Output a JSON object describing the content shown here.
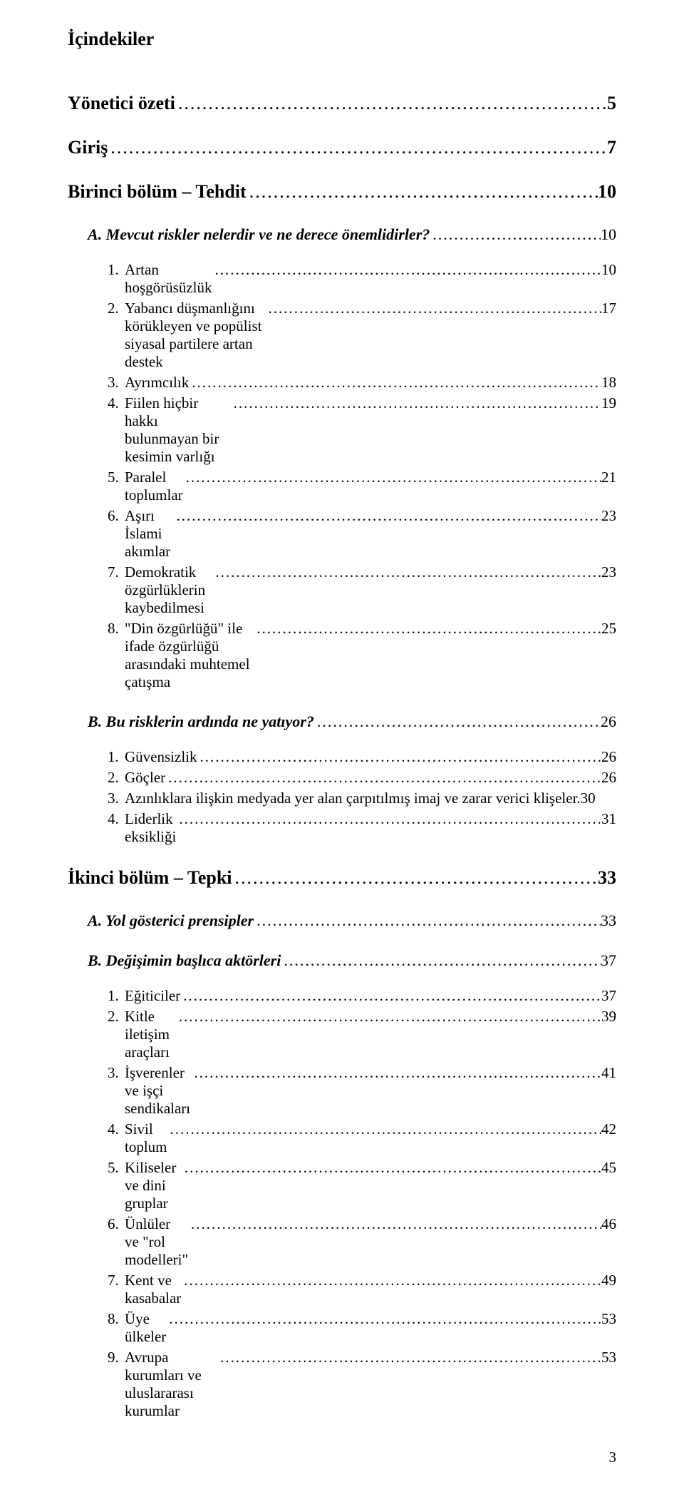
{
  "title": "İçindekiler",
  "sections": [
    {
      "type": "h1",
      "label": "Yönetici özeti",
      "page": "5"
    },
    {
      "type": "h1",
      "label": "Giriş",
      "page": "7"
    },
    {
      "type": "h1",
      "label": "Birinci bölüm – Tehdit",
      "page": "10"
    },
    {
      "type": "h2",
      "label": "A. Mevcut riskler nelerdir ve ne derece önemlidirler?",
      "page": "10"
    },
    {
      "type": "h3",
      "num": "1.",
      "label": "Artan hoşgörüsüzlük",
      "page": "10"
    },
    {
      "type": "h3",
      "num": "2.",
      "label": "Yabancı düşmanlığını körükleyen ve popülist siyasal partilere artan destek",
      "page": "17"
    },
    {
      "type": "h3",
      "num": "3.",
      "label": "Ayrımcılık",
      "page": "18"
    },
    {
      "type": "h3",
      "num": "4.",
      "label": "Fiilen hiçbir hakkı bulunmayan bir kesimin varlığı",
      "page": "19"
    },
    {
      "type": "h3",
      "num": "5.",
      "label": "Paralel toplumlar",
      "page": "21"
    },
    {
      "type": "h3",
      "num": "6.",
      "label": "Aşırı İslami akımlar",
      "page": "23"
    },
    {
      "type": "h3",
      "num": "7.",
      "label": "Demokratik özgürlüklerin kaybedilmesi",
      "page": "23"
    },
    {
      "type": "h3",
      "num": "8.",
      "label": "\"Din özgürlüğü\" ile ifade özgürlüğü arasındaki muhtemel çatışma",
      "page": "25"
    },
    {
      "type": "h2",
      "label": "B. Bu risklerin ardında ne yatıyor?",
      "page": "26"
    },
    {
      "type": "h3",
      "num": "1.",
      "label": "Güvensizlik",
      "page": "26"
    },
    {
      "type": "h3",
      "num": "2.",
      "label": "Göçler",
      "page": "26"
    },
    {
      "type": "h3",
      "num": "3.",
      "label": "Azınlıklara ilişkin medyada yer alan çarpıtılmış imaj ve zarar verici klişeler.",
      "page": "30",
      "no_leader": true
    },
    {
      "type": "h3",
      "num": "4.",
      "label": "Liderlik eksikliği",
      "page": "31"
    },
    {
      "type": "h1",
      "label": "İkinci bölüm – Tepki",
      "page": "33"
    },
    {
      "type": "h2",
      "label": "A. Yol gösterici prensipler",
      "page": "33"
    },
    {
      "type": "h2",
      "label": "B. Değişimin başlıca aktörleri",
      "page": "37"
    },
    {
      "type": "h3",
      "num": "1.",
      "label": "Eğiticiler",
      "page": "37"
    },
    {
      "type": "h3",
      "num": "2.",
      "label": "Kitle iletişim araçları",
      "page": "39"
    },
    {
      "type": "h3",
      "num": "3.",
      "label": "İşverenler ve işçi sendikaları",
      "page": "41"
    },
    {
      "type": "h3",
      "num": "4.",
      "label": "Sivil toplum",
      "page": "42"
    },
    {
      "type": "h3",
      "num": "5.",
      "label": "Kiliseler ve dini gruplar",
      "page": "45"
    },
    {
      "type": "h3",
      "num": "6.",
      "label": "Ünlüler ve \"rol modelleri\"",
      "page": "46"
    },
    {
      "type": "h3",
      "num": "7.",
      "label": "Kent ve kasabalar",
      "page": "49"
    },
    {
      "type": "h3",
      "num": "8.",
      "label": "Üye ülkeler",
      "page": "53"
    },
    {
      "type": "h3",
      "num": "9.",
      "label": "Avrupa kurumları ve uluslararası kurumlar",
      "page": "53"
    }
  ],
  "page_number": "3"
}
